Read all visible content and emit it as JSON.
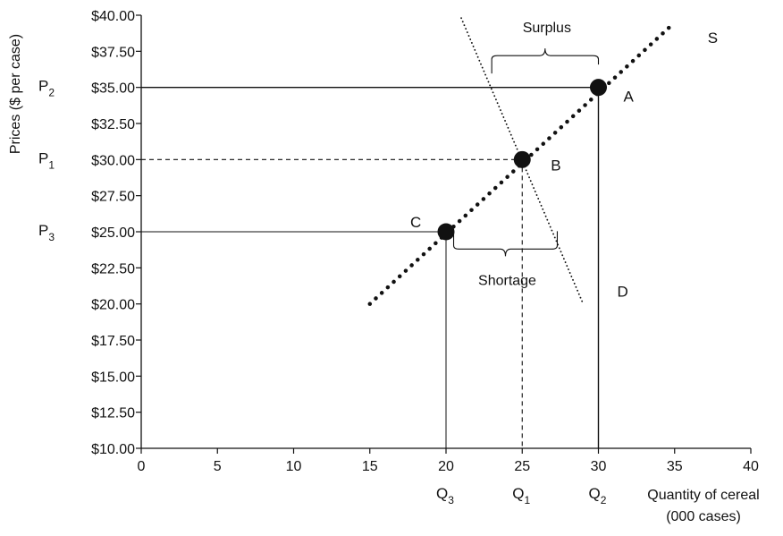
{
  "chart_data": {
    "type": "line",
    "xlabel": "Quantity of cereal",
    "xlabel_line2": "(000 cases)",
    "ylabel": "Prices ($ per case)",
    "xlim": [
      0,
      40
    ],
    "ylim": [
      10,
      40
    ],
    "x_ticks": [
      0,
      5,
      10,
      15,
      20,
      25,
      30,
      35,
      40
    ],
    "y_ticks": [
      10,
      12.5,
      15,
      17.5,
      20,
      22.5,
      25,
      27.5,
      30,
      32.5,
      35,
      37.5,
      40
    ],
    "x_tick_labels": [
      "0",
      "5",
      "10",
      "15",
      "20",
      "25",
      "30",
      "35",
      "40"
    ],
    "y_tick_labels": [
      "$10.00",
      "$12.50",
      "$15.00",
      "$17.50",
      "$20.00",
      "$22.50",
      "$25.00",
      "$27.50",
      "$30.00",
      "$32.50",
      "$35.00",
      "$37.50",
      "$40.00"
    ],
    "grid": false,
    "series": [
      {
        "name": "S",
        "style": "thick-dotted",
        "x": [
          15,
          35
        ],
        "y": [
          20,
          39.5
        ]
      },
      {
        "name": "D",
        "style": "thin-dotted",
        "x": [
          21,
          29
        ],
        "y": [
          39.8,
          20
        ]
      }
    ],
    "points": [
      {
        "name": "A",
        "x": 30,
        "y": 35
      },
      {
        "name": "B",
        "x": 25,
        "y": 30
      },
      {
        "name": "C",
        "x": 20,
        "y": 25
      }
    ],
    "price_levels": [
      {
        "label": "P",
        "sub": "2",
        "y": 35
      },
      {
        "label": "P",
        "sub": "1",
        "y": 30
      },
      {
        "label": "P",
        "sub": "3",
        "y": 25
      }
    ],
    "quantity_levels": [
      {
        "label": "Q",
        "sub": "3",
        "x": 20
      },
      {
        "label": "Q",
        "sub": "1",
        "x": 25
      },
      {
        "label": "Q",
        "sub": "2",
        "x": 30
      }
    ],
    "brackets": [
      {
        "label": "Surplus",
        "x1": 23,
        "x2": 30,
        "y": 37.2,
        "side": "above"
      },
      {
        "label": "Shortage",
        "x1": 20.5,
        "x2": 27.3,
        "y": 23.8,
        "side": "below"
      }
    ]
  }
}
